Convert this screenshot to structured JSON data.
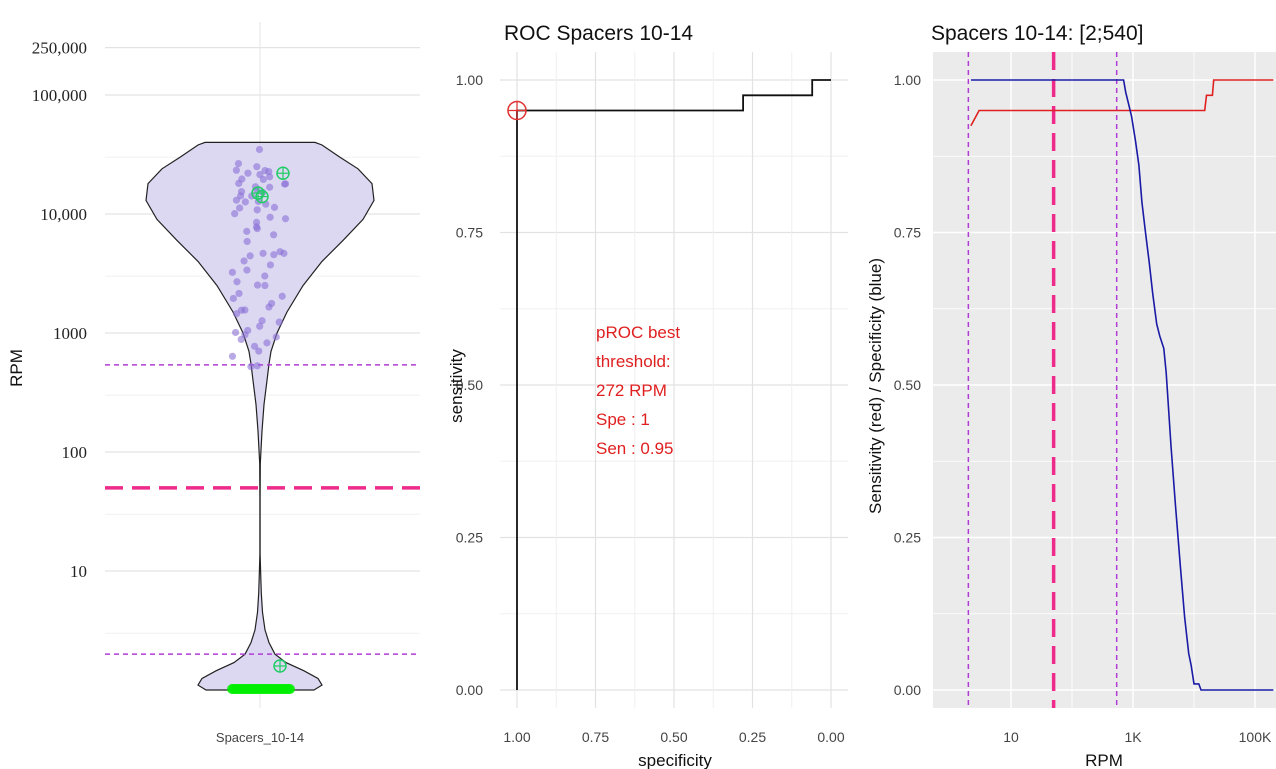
{
  "colors": {
    "violin_fill": "#dcd8f2",
    "violin_stroke": "#222222",
    "points": "#8a72d6",
    "zeros": "#00ee00",
    "highlight": "#22cc66",
    "threshold_dashed": "#ee2a8a",
    "bounds_dotted": "#b03cd6",
    "roc_marker": "#e03030",
    "sensitivity": "#e02020",
    "specificity": "#1a1aa6",
    "annotation": "#e02020",
    "panel_bg_right": "#ebebeb",
    "grid_light": "#e6e6e6"
  },
  "chart_data": [
    {
      "type": "violin",
      "title": "",
      "xlabel": "",
      "ylabel": "RPM",
      "y_scale": "log10",
      "categories": [
        "Spacers_10-14"
      ],
      "y_tick_labels": [
        "250,000",
        "100,000",
        "10,000",
        "1000",
        "100",
        "10"
      ],
      "y_ticks": [
        250000,
        100000,
        10000,
        1000,
        100,
        10
      ],
      "threshold_rpm": 50,
      "bounds_rpm": [
        540,
        2
      ],
      "violin_profile": [
        [
          1,
          54
        ],
        [
          1.1,
          62
        ],
        [
          1.25,
          58
        ],
        [
          1.45,
          44
        ],
        [
          1.7,
          26
        ],
        [
          2.0,
          15
        ],
        [
          2.5,
          9
        ],
        [
          3.2,
          5
        ],
        [
          4.5,
          2.5
        ],
        [
          6.5,
          1.3
        ],
        [
          10,
          0.6
        ],
        [
          14,
          0.1
        ],
        [
          18,
          0.1
        ],
        [
          40,
          0.15
        ],
        [
          80,
          0.3
        ],
        [
          150,
          2
        ],
        [
          250,
          4
        ],
        [
          400,
          7
        ],
        [
          550,
          9
        ],
        [
          700,
          11
        ],
        [
          1000,
          17
        ],
        [
          1500,
          27
        ],
        [
          2500,
          43
        ],
        [
          4000,
          62
        ],
        [
          6000,
          83
        ],
        [
          9000,
          103
        ],
        [
          13000,
          114
        ],
        [
          18000,
          112
        ],
        [
          24000,
          98
        ],
        [
          30000,
          80
        ],
        [
          38000,
          62
        ],
        [
          40000,
          55
        ]
      ],
      "points_rpm": [
        35000,
        26000,
        25000,
        24000,
        23000,
        22500,
        22000,
        21000,
        20000,
        19500,
        19000,
        18500,
        18000,
        17500,
        17000,
        16500,
        16000,
        15500,
        15000,
        14500,
        14000,
        13500,
        13000,
        12500,
        12000,
        11500,
        11000,
        10500,
        10000,
        9500,
        9000,
        8500,
        8000,
        7500,
        7000,
        6500,
        6000,
        5000,
        4800,
        4600,
        4500,
        4400,
        4000,
        3800,
        3500,
        3200,
        3000,
        2800,
        2600,
        2500,
        2200,
        2000,
        1900,
        1800,
        1700,
        1600,
        1500,
        1400,
        1300,
        1200,
        1100,
        1050,
        1000,
        950,
        900,
        850,
        800,
        750,
        700,
        650,
        540,
        540
      ],
      "highlighted_rpm": [
        22000,
        15000,
        14000,
        1.5
      ],
      "zero_count": 40
    },
    {
      "type": "line",
      "title": "ROC Spacers 10-14",
      "xlabel": "specificity",
      "ylabel": "sensitivity",
      "x_reversed": true,
      "xlim": [
        0,
        1
      ],
      "ylim": [
        0,
        1
      ],
      "x_tick_labels": [
        "1.00",
        "0.75",
        "0.50",
        "0.25",
        "0.00"
      ],
      "y_tick_labels": [
        "0.00",
        "0.25",
        "0.50",
        "0.75",
        "1.00"
      ],
      "x_ticks": [
        1,
        0.75,
        0.5,
        0.25,
        0
      ],
      "y_ticks": [
        0,
        0.25,
        0.5,
        0.75,
        1
      ],
      "series": [
        {
          "points": [
            [
              1,
              0
            ],
            [
              1,
              0.95
            ],
            [
              0.28,
              0.95
            ],
            [
              0.28,
              0.975
            ],
            [
              0.06,
              0.975
            ],
            [
              0.06,
              1
            ],
            [
              0,
              1
            ]
          ]
        }
      ],
      "best_point": [
        1,
        0.95
      ],
      "annotation": [
        "pROC best",
        "threshold:",
        "272 RPM",
        "Spe : 1",
        "Sen : 0.95"
      ]
    },
    {
      "type": "line",
      "title": "Spacers 10-14: [2;540]",
      "xlabel": "RPM",
      "ylabel": "Sensitivity (red) / Specificity (blue)",
      "x_scale": "log10",
      "xlim": [
        2.2,
        200000
      ],
      "ylim": [
        0,
        1
      ],
      "x_tick_labels": [
        "10",
        "1K",
        "100K"
      ],
      "x_ticks": [
        10,
        1000,
        100000
      ],
      "y_tick_labels": [
        "0.00",
        "0.25",
        "0.50",
        "0.75",
        "1.00"
      ],
      "y_ticks": [
        0,
        0.25,
        0.5,
        0.75,
        1
      ],
      "threshold_rpm": 50,
      "bounds_rpm": [
        2,
        540
      ],
      "series": [
        {
          "color": "#e02020",
          "points": [
            [
              2.2,
              0.925
            ],
            [
              3,
              0.95
            ],
            [
              15000,
              0.95
            ],
            [
              16000,
              0.975
            ],
            [
              20000,
              0.975
            ],
            [
              21000,
              1
            ],
            [
              200000,
              1
            ]
          ]
        },
        {
          "color": "#1a1aa6",
          "points": [
            [
              2.2,
              1
            ],
            [
              700,
              1
            ],
            [
              760,
              0.98
            ],
            [
              850,
              0.96
            ],
            [
              950,
              0.94
            ],
            [
              1100,
              0.9
            ],
            [
              1250,
              0.86
            ],
            [
              1400,
              0.8
            ],
            [
              1600,
              0.75
            ],
            [
              1850,
              0.7
            ],
            [
              2100,
              0.65
            ],
            [
              2450,
              0.6
            ],
            [
              2750,
              0.58
            ],
            [
              3200,
              0.56
            ],
            [
              3500,
              0.52
            ],
            [
              4200,
              0.4
            ],
            [
              5000,
              0.3
            ],
            [
              6000,
              0.2
            ],
            [
              7000,
              0.12
            ],
            [
              8200,
              0.06
            ],
            [
              9000,
              0.04
            ],
            [
              10000,
              0.01
            ],
            [
              12000,
              0.01
            ],
            [
              13000,
              0
            ],
            [
              200000,
              0
            ]
          ]
        }
      ]
    }
  ]
}
